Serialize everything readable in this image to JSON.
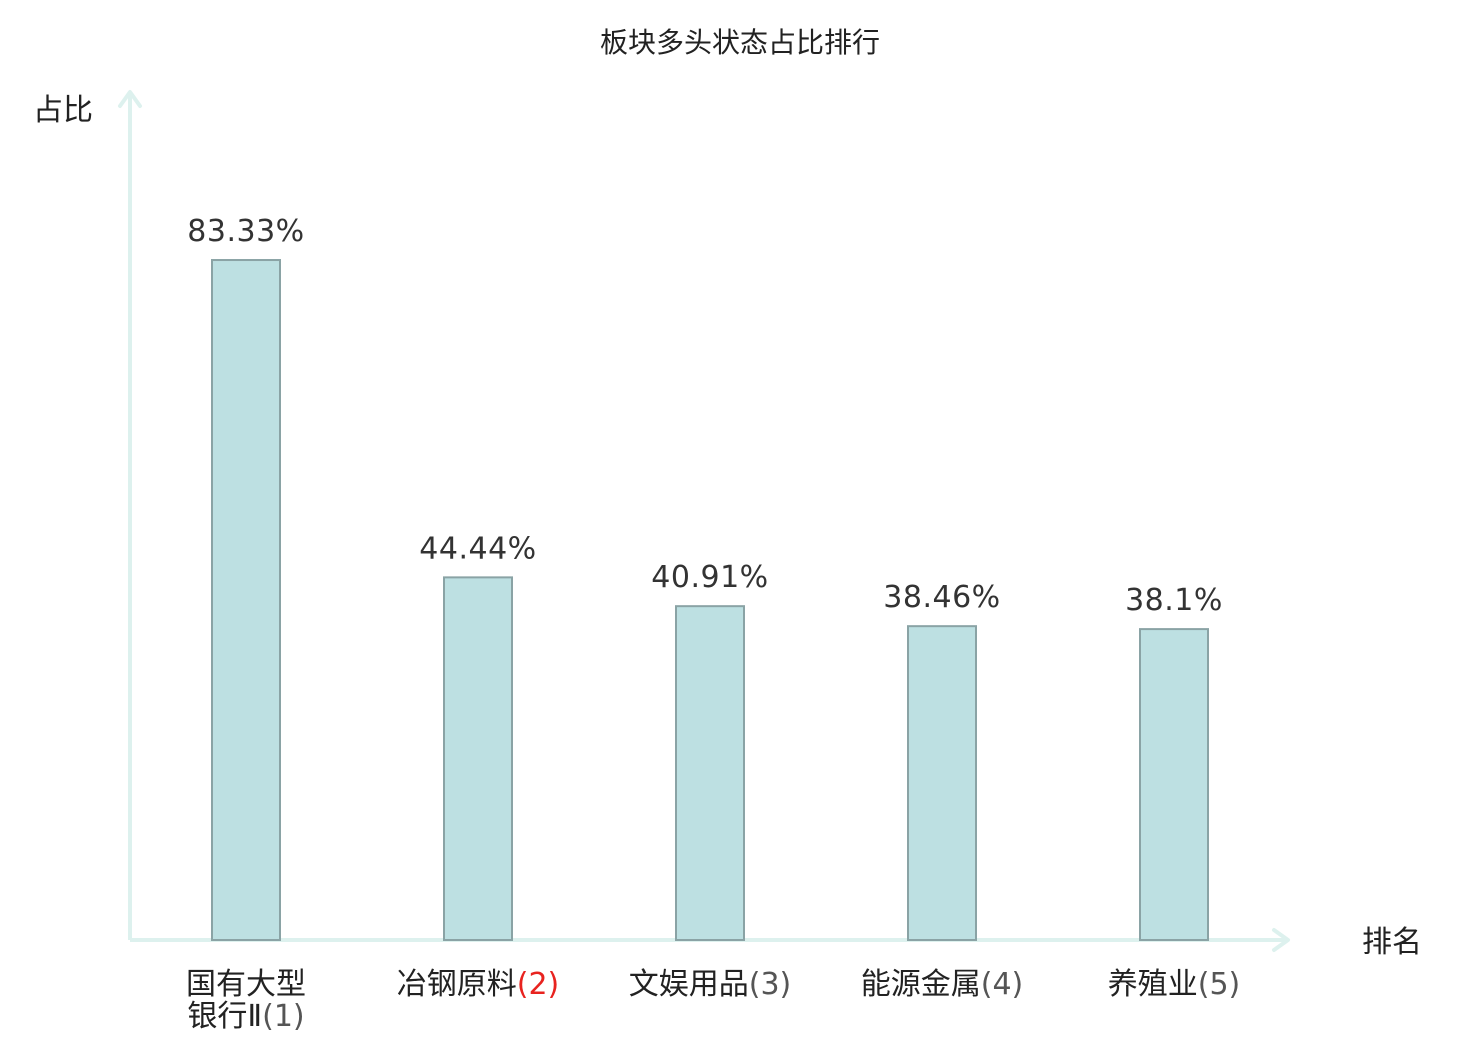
{
  "chart_data": {
    "type": "bar",
    "title": "板块多头状态占比排行",
    "ylabel": "占比",
    "xlabel": "排名",
    "ylim": [
      0,
      100
    ],
    "categories": [
      {
        "lines": [
          "国有大型",
          "银行Ⅱ"
        ],
        "rank": "(1)",
        "highlight": false
      },
      {
        "lines": [
          "冶钢原料"
        ],
        "rank": "(2)",
        "highlight": true
      },
      {
        "lines": [
          "文娱用品"
        ],
        "rank": "(3)",
        "highlight": false
      },
      {
        "lines": [
          "能源金属"
        ],
        "rank": "(4)",
        "highlight": false
      },
      {
        "lines": [
          "养殖业"
        ],
        "rank": "(5)",
        "highlight": false
      }
    ],
    "values": [
      83.33,
      44.44,
      40.91,
      38.46,
      38.1
    ],
    "value_labels": [
      "83.33%",
      "44.44%",
      "40.91%",
      "38.46%",
      "38.1%"
    ],
    "grid": false,
    "colors": {
      "bar_fill": "#bde0e2",
      "bar_stroke": "#8aa3a5",
      "axis": "#ddf1ee",
      "highlight_text": "#e8231f",
      "text": "#222222"
    }
  }
}
